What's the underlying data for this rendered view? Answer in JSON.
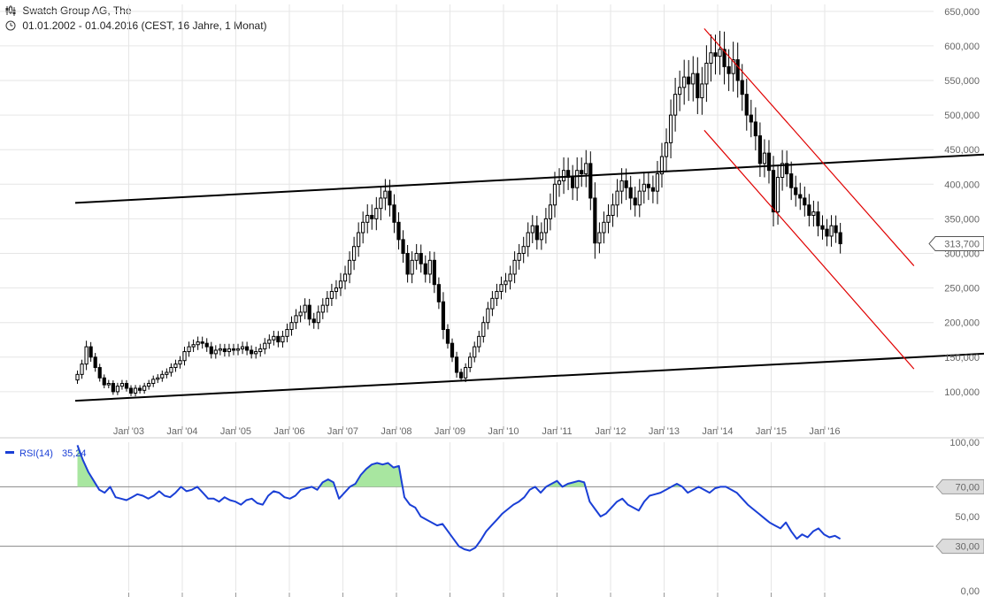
{
  "header": {
    "title": "Swatch Group AG, The",
    "subtitle": "01.01.2002 - 01.04.2016 (CEST, 16 Jahre, 1 Monat)"
  },
  "colors": {
    "candle": "#000000",
    "trend_black": "#000000",
    "trend_red": "#e00000",
    "rsi_line": "#1a3fd6",
    "rsi_fill": "#a8e6a0",
    "grid": "#e6e6e6",
    "axis_text": "#666666"
  },
  "chart_data": [
    {
      "type": "candlestick",
      "name": "price",
      "x_ticks": [
        "Jan '03",
        "Jan '04",
        "Jan '05",
        "Jan '06",
        "Jan '07",
        "Jan '08",
        "Jan '09",
        "Jan '10",
        "Jan '11",
        "Jan '12",
        "Jan '13",
        "Jan '14",
        "Jan '15",
        "Jan '16"
      ],
      "y_ticks": [
        "100,000",
        "150,000",
        "200,000",
        "250,000",
        "300,000",
        "350,000",
        "400,000",
        "450,000",
        "500,000",
        "550,000",
        "600,000",
        "650,000"
      ],
      "ylim": [
        50,
        660
      ],
      "last_value_label": "313,700",
      "monthly_close": [
        [
          "2002-01",
          125
        ],
        [
          "2002-02",
          140
        ],
        [
          "2002-03",
          165
        ],
        [
          "2002-04",
          150
        ],
        [
          "2002-05",
          135
        ],
        [
          "2002-06",
          120
        ],
        [
          "2002-07",
          110
        ],
        [
          "2002-08",
          112
        ],
        [
          "2002-09",
          100
        ],
        [
          "2002-10",
          108
        ],
        [
          "2002-11",
          112
        ],
        [
          "2002-12",
          105
        ],
        [
          "2003-01",
          98
        ],
        [
          "2003-02",
          105
        ],
        [
          "2003-03",
          102
        ],
        [
          "2003-04",
          108
        ],
        [
          "2003-05",
          112
        ],
        [
          "2003-06",
          118
        ],
        [
          "2003-07",
          120
        ],
        [
          "2003-08",
          125
        ],
        [
          "2003-09",
          128
        ],
        [
          "2003-10",
          135
        ],
        [
          "2003-11",
          140
        ],
        [
          "2003-12",
          145
        ],
        [
          "2004-01",
          158
        ],
        [
          "2004-02",
          165
        ],
        [
          "2004-03",
          168
        ],
        [
          "2004-04",
          172
        ],
        [
          "2004-05",
          170
        ],
        [
          "2004-06",
          165
        ],
        [
          "2004-07",
          155
        ],
        [
          "2004-08",
          160
        ],
        [
          "2004-09",
          162
        ],
        [
          "2004-10",
          158
        ],
        [
          "2004-11",
          162
        ],
        [
          "2004-12",
          160
        ],
        [
          "2005-01",
          162
        ],
        [
          "2005-02",
          165
        ],
        [
          "2005-03",
          160
        ],
        [
          "2005-04",
          155
        ],
        [
          "2005-05",
          158
        ],
        [
          "2005-06",
          162
        ],
        [
          "2005-07",
          170
        ],
        [
          "2005-08",
          175
        ],
        [
          "2005-09",
          180
        ],
        [
          "2005-10",
          172
        ],
        [
          "2005-11",
          180
        ],
        [
          "2005-12",
          190
        ],
        [
          "2006-01",
          200
        ],
        [
          "2006-02",
          210
        ],
        [
          "2006-03",
          215
        ],
        [
          "2006-04",
          225
        ],
        [
          "2006-05",
          205
        ],
        [
          "2006-06",
          200
        ],
        [
          "2006-07",
          215
        ],
        [
          "2006-08",
          225
        ],
        [
          "2006-09",
          235
        ],
        [
          "2006-10",
          245
        ],
        [
          "2006-11",
          250
        ],
        [
          "2006-12",
          260
        ],
        [
          "2007-01",
          270
        ],
        [
          "2007-02",
          290
        ],
        [
          "2007-03",
          310
        ],
        [
          "2007-04",
          330
        ],
        [
          "2007-05",
          345
        ],
        [
          "2007-06",
          355
        ],
        [
          "2007-07",
          350
        ],
        [
          "2007-08",
          365
        ],
        [
          "2007-09",
          380
        ],
        [
          "2007-10",
          390
        ],
        [
          "2007-11",
          370
        ],
        [
          "2007-12",
          345
        ],
        [
          "2008-01",
          320
        ],
        [
          "2008-02",
          300
        ],
        [
          "2008-03",
          270
        ],
        [
          "2008-04",
          290
        ],
        [
          "2008-05",
          300
        ],
        [
          "2008-06",
          285
        ],
        [
          "2008-07",
          270
        ],
        [
          "2008-08",
          290
        ],
        [
          "2008-09",
          255
        ],
        [
          "2008-10",
          230
        ],
        [
          "2008-11",
          190
        ],
        [
          "2008-12",
          170
        ],
        [
          "2009-01",
          150
        ],
        [
          "2009-02",
          128
        ],
        [
          "2009-03",
          120
        ],
        [
          "2009-04",
          135
        ],
        [
          "2009-05",
          150
        ],
        [
          "2009-06",
          165
        ],
        [
          "2009-07",
          180
        ],
        [
          "2009-08",
          200
        ],
        [
          "2009-09",
          220
        ],
        [
          "2009-10",
          235
        ],
        [
          "2009-11",
          245
        ],
        [
          "2009-12",
          255
        ],
        [
          "2010-01",
          260
        ],
        [
          "2010-02",
          270
        ],
        [
          "2010-03",
          290
        ],
        [
          "2010-04",
          300
        ],
        [
          "2010-05",
          310
        ],
        [
          "2010-06",
          330
        ],
        [
          "2010-07",
          340
        ],
        [
          "2010-08",
          320
        ],
        [
          "2010-09",
          330
        ],
        [
          "2010-10",
          350
        ],
        [
          "2010-11",
          370
        ],
        [
          "2010-12",
          400
        ],
        [
          "2011-01",
          405
        ],
        [
          "2011-02",
          420
        ],
        [
          "2011-03",
          410
        ],
        [
          "2011-04",
          395
        ],
        [
          "2011-05",
          420
        ],
        [
          "2011-06",
          415
        ],
        [
          "2011-07",
          430
        ],
        [
          "2011-08",
          380
        ],
        [
          "2011-09",
          315
        ],
        [
          "2011-10",
          330
        ],
        [
          "2011-11",
          345
        ],
        [
          "2011-12",
          355
        ],
        [
          "2012-01",
          370
        ],
        [
          "2012-02",
          390
        ],
        [
          "2012-03",
          405
        ],
        [
          "2012-04",
          395
        ],
        [
          "2012-05",
          380
        ],
        [
          "2012-06",
          370
        ],
        [
          "2012-07",
          390
        ],
        [
          "2012-08",
          400
        ],
        [
          "2012-09",
          395
        ],
        [
          "2012-10",
          390
        ],
        [
          "2012-11",
          415
        ],
        [
          "2012-12",
          440
        ],
        [
          "2013-01",
          460
        ],
        [
          "2013-02",
          500
        ],
        [
          "2013-03",
          530
        ],
        [
          "2013-04",
          540
        ],
        [
          "2013-05",
          555
        ],
        [
          "2013-06",
          545
        ],
        [
          "2013-07",
          560
        ],
        [
          "2013-08",
          525
        ],
        [
          "2013-09",
          545
        ],
        [
          "2013-10",
          575
        ],
        [
          "2013-11",
          590
        ],
        [
          "2013-12",
          585
        ],
        [
          "2014-01",
          595
        ],
        [
          "2014-02",
          570
        ],
        [
          "2014-03",
          560
        ],
        [
          "2014-04",
          580
        ],
        [
          "2014-05",
          550
        ],
        [
          "2014-06",
          530
        ],
        [
          "2014-07",
          500
        ],
        [
          "2014-08",
          490
        ],
        [
          "2014-09",
          470
        ],
        [
          "2014-10",
          430
        ],
        [
          "2014-11",
          445
        ],
        [
          "2014-12",
          420
        ],
        [
          "2015-01",
          360
        ],
        [
          "2015-02",
          410
        ],
        [
          "2015-03",
          430
        ],
        [
          "2015-04",
          415
        ],
        [
          "2015-05",
          395
        ],
        [
          "2015-06",
          385
        ],
        [
          "2015-07",
          380
        ],
        [
          "2015-08",
          370
        ],
        [
          "2015-09",
          355
        ],
        [
          "2015-10",
          360
        ],
        [
          "2015-11",
          340
        ],
        [
          "2015-12",
          335
        ],
        [
          "2016-01",
          325
        ],
        [
          "2016-02",
          340
        ],
        [
          "2016-03",
          330
        ],
        [
          "2016-04",
          314
        ]
      ],
      "trend_lines": [
        {
          "color": "black",
          "from": [
            "2002-01",
            87
          ],
          "to": [
            "2019-10",
            155
          ]
        },
        {
          "color": "black",
          "from": [
            "2002-01",
            373
          ],
          "to": [
            "2019-10",
            443
          ]
        },
        {
          "color": "red",
          "from": [
            "2013-10",
            625
          ],
          "to": [
            "2017-09",
            282
          ]
        },
        {
          "color": "red",
          "from": [
            "2013-10",
            478
          ],
          "to": [
            "2017-09",
            133
          ]
        }
      ]
    },
    {
      "type": "line",
      "name": "RSI(14)",
      "legend_value": "35,24",
      "y_ticks": [
        "0,00",
        "30,00",
        "50,00",
        "70,00",
        "100,00"
      ],
      "ylim": [
        0,
        100
      ],
      "levels": [
        {
          "value": 70,
          "label": "70,00"
        },
        {
          "value": 30,
          "label": "30,00"
        }
      ],
      "values": [
        98,
        88,
        80,
        74,
        68,
        66,
        70,
        63,
        62,
        61,
        63,
        65,
        64,
        62,
        64,
        67,
        64,
        63,
        66,
        70,
        67,
        68,
        70,
        66,
        62,
        62,
        60,
        63,
        61,
        60,
        58,
        61,
        62,
        59,
        58,
        64,
        67,
        66,
        63,
        62,
        64,
        68,
        69,
        70,
        68,
        73,
        75,
        73,
        62,
        66,
        70,
        72,
        78,
        82,
        85,
        86,
        85,
        86,
        83,
        84,
        63,
        58,
        56,
        50,
        48,
        46,
        44,
        45,
        40,
        35,
        30,
        28,
        27,
        29,
        34,
        40,
        44,
        48,
        52,
        55,
        58,
        60,
        63,
        68,
        70,
        66,
        70,
        72,
        74,
        70,
        72,
        73,
        74,
        73,
        60,
        55,
        50,
        52,
        56,
        60,
        62,
        58,
        56,
        54,
        60,
        64,
        65,
        66,
        68,
        70,
        72,
        70,
        66,
        68,
        70,
        68,
        66,
        69,
        70,
        70,
        68,
        66,
        62,
        58,
        55,
        52,
        49,
        46,
        44,
        42,
        46,
        40,
        35,
        38,
        36,
        40,
        42,
        38,
        36,
        37,
        35
      ]
    }
  ]
}
